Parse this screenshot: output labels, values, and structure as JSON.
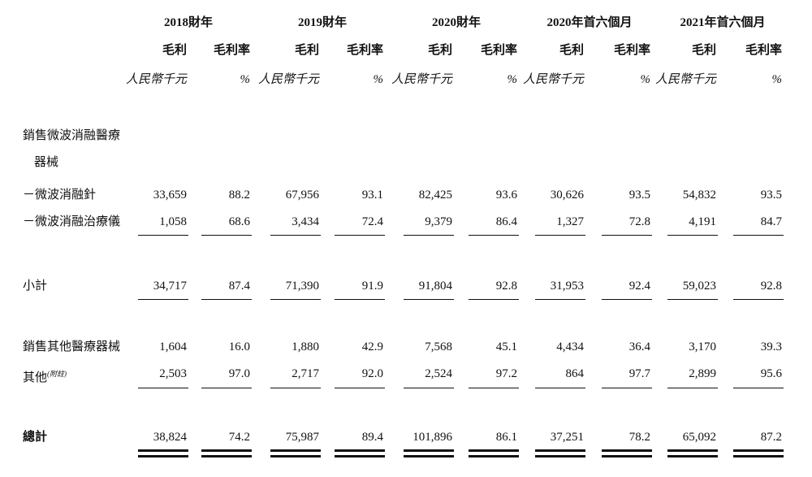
{
  "header": {
    "periods": [
      {
        "title": "2018財年",
        "columns": [
          "毛利",
          "毛利率"
        ],
        "units": [
          "人民幣千元",
          "%"
        ]
      },
      {
        "title": "2019財年",
        "columns": [
          "毛利",
          "毛利率"
        ],
        "units": [
          "人民幣千元",
          "%"
        ]
      },
      {
        "title": "2020財年",
        "columns": [
          "毛利",
          "毛利率"
        ],
        "units": [
          "人民幣千元",
          "%"
        ]
      },
      {
        "title": "2020年首六個月",
        "columns": [
          "毛利",
          "毛利率"
        ],
        "units": [
          "人民幣千元",
          "%"
        ]
      },
      {
        "title": "2021年首六個月",
        "columns": [
          "毛利",
          "毛利率"
        ],
        "units": [
          "人民幣千元",
          "%"
        ]
      }
    ]
  },
  "rows": [
    {
      "label": [
        "銷售微波消融醫療",
        "器械"
      ]
    },
    {
      "label": "－微波消融針",
      "values": [
        "33,659",
        "88.2",
        "67,956",
        "93.1",
        "82,425",
        "93.6",
        "30,626",
        "93.5",
        "54,832",
        "93.5"
      ]
    },
    {
      "label": "－微波消融治療儀",
      "values": [
        "1,058",
        "68.6",
        "3,434",
        "72.4",
        "9,379",
        "86.4",
        "1,327",
        "72.8",
        "4,191",
        "84.7"
      ]
    },
    {
      "label": "小計",
      "values": [
        "34,717",
        "87.4",
        "71,390",
        "91.9",
        "91,804",
        "92.8",
        "31,953",
        "92.4",
        "59,023",
        "92.8"
      ]
    },
    {
      "label": "銷售其他醫療器械",
      "values": [
        "1,604",
        "16.0",
        "1,880",
        "42.9",
        "7,568",
        "45.1",
        "4,434",
        "36.4",
        "3,170",
        "39.3"
      ]
    },
    {
      "label": "其他",
      "note": "(附註)",
      "values": [
        "2,503",
        "97.0",
        "2,717",
        "92.0",
        "2,524",
        "97.2",
        "864",
        "97.7",
        "2,899",
        "95.6"
      ]
    },
    {
      "label": "總計",
      "values": [
        "38,824",
        "74.2",
        "75,987",
        "89.4",
        "101,896",
        "86.1",
        "37,251",
        "78.2",
        "65,092",
        "87.2"
      ]
    }
  ]
}
